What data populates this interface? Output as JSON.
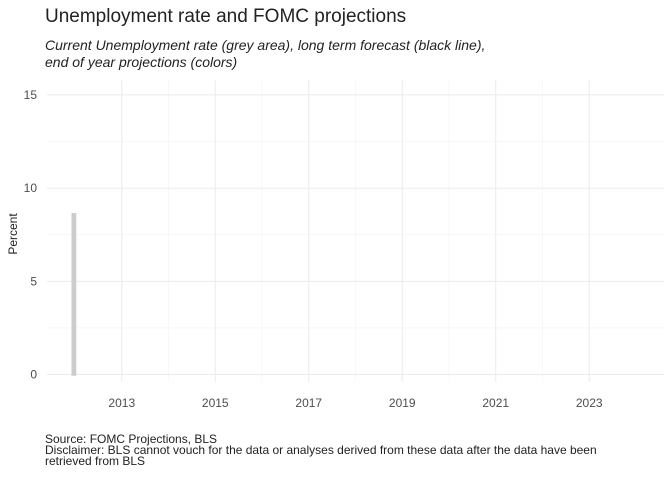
{
  "chart_data": {
    "type": "area",
    "title": "Unemployment rate and FOMC projections",
    "subtitle_lines": [
      "Current Unemployment rate (grey area), long term forecast (black line),",
      "end of year projections (colors)"
    ],
    "ylabel": "Percent",
    "xlabel": "",
    "x_ticks": [
      "2013",
      "2015",
      "2017",
      "2019",
      "2021",
      "2023"
    ],
    "x_tick_values": [
      2013,
      2015,
      2017,
      2019,
      2021,
      2023
    ],
    "y_ticks": [
      "0",
      "5",
      "10",
      "15"
    ],
    "y_tick_values": [
      0,
      5,
      10,
      15
    ],
    "xlim": [
      2011.4,
      2024.6
    ],
    "ylim": [
      -0.4,
      15.8
    ],
    "grid": true,
    "series": [
      {
        "kind": "area",
        "color": "#cccccc",
        "x": [
          2011.95,
          2012.0
        ],
        "y": [
          8.6,
          8.6
        ]
      }
    ],
    "caption_lines": [
      "Source: FOMC Projections, BLS",
      "Disclaimer: BLS cannot vouch for the data or analyses derived from these data after the data have been",
      "retrieved from BLS"
    ]
  }
}
